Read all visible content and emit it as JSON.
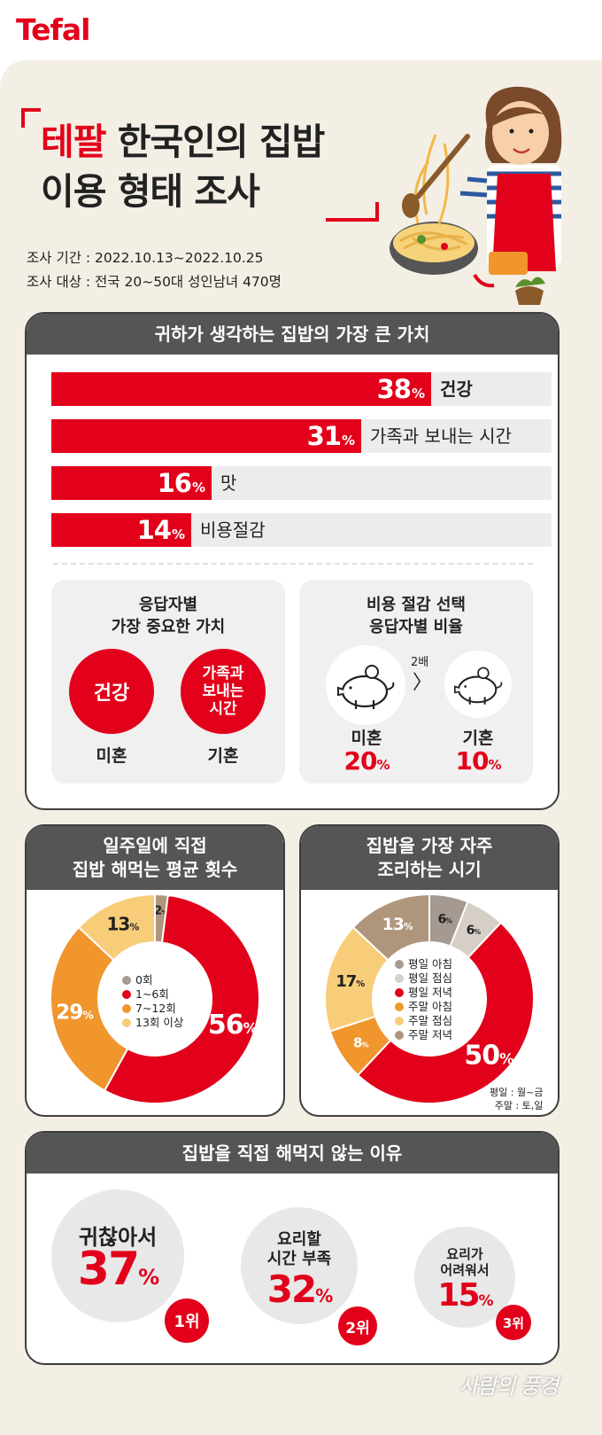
{
  "brand": "Tefal",
  "title": {
    "brand_word": "테팔",
    "line1_rest": " 한국인의 집밥",
    "line2": "이용 형태 조사"
  },
  "meta": {
    "period": "조사 기간 : 2022.10.13~2022.10.25",
    "target": "조사 대상 : 전국 20~50대 성인남녀 470명"
  },
  "colors": {
    "red": "#e2001a",
    "orange": "#f0962d",
    "yellow": "#f8cd7a",
    "tan": "#b0957d",
    "gray": "#a49a92",
    "light": "#d6cfc7",
    "header": "#555555"
  },
  "section1": {
    "header": "귀하가 생각하는 집밥의 가장 큰 가치",
    "chart_data": {
      "type": "bar",
      "categories": [
        "건강",
        "가족과 보내는 시간",
        "맛",
        "비용절감"
      ],
      "values": [
        38,
        31,
        16,
        14
      ],
      "unit": "%"
    },
    "left_box": {
      "title1": "응답자별",
      "title2": "가장 중요한 가치",
      "c1": "건강",
      "c2a": "가족과",
      "c2b": "보내는",
      "c2c": "시간",
      "l1": "미혼",
      "l2": "기혼"
    },
    "right_box": {
      "title1": "비용 절감 선택",
      "title2": "응답자별 비율",
      "ratio": "2배",
      "arrow": "〉",
      "l1": "미혼",
      "v1": "20",
      "l2": "기혼",
      "v2": "10",
      "unit": "%",
      "icon": "piggy-bank-icon"
    }
  },
  "section2": {
    "header1": "일주일에 직접",
    "header2": "집밥 해먹는 평균 횟수",
    "chart_data": {
      "type": "pie",
      "categories": [
        "0회",
        "1~6회",
        "7~12회",
        "13회 이상"
      ],
      "values": [
        2,
        56,
        29,
        13
      ],
      "unit": "%"
    }
  },
  "section3": {
    "header1": "집밥을 가장 자주",
    "header2": "조리하는 시기",
    "chart_data": {
      "type": "pie",
      "categories": [
        "평일 아침",
        "평일 점심",
        "평일 저녁",
        "주말 아침",
        "주말 점심",
        "주말 저녁"
      ],
      "values": [
        6,
        6,
        50,
        8,
        17,
        13
      ],
      "unit": "%"
    },
    "note1": "평일 : 월~금",
    "note2": "주말 : 토,일"
  },
  "section4": {
    "header": "집밥을 직접 해먹지 않는 이유",
    "items": [
      {
        "t1": "귀찮아서",
        "t2": "",
        "value": "37",
        "rank": "1위"
      },
      {
        "t1": "요리할",
        "t2": "시간 부족",
        "value": "32",
        "rank": "2위"
      },
      {
        "t1": "요리가",
        "t2": "어려워서",
        "value": "15",
        "rank": "3위"
      }
    ],
    "unit": "%"
  },
  "watermark": "사람의 풍경"
}
